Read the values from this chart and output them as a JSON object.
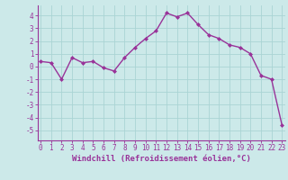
{
  "x": [
    0,
    1,
    2,
    3,
    4,
    5,
    6,
    7,
    8,
    9,
    10,
    11,
    12,
    13,
    14,
    15,
    16,
    17,
    18,
    19,
    20,
    21,
    22,
    23
  ],
  "y": [
    0.4,
    0.3,
    -1.0,
    0.7,
    0.3,
    0.4,
    -0.1,
    -0.35,
    0.7,
    1.5,
    2.2,
    2.8,
    4.2,
    3.9,
    4.2,
    3.3,
    2.5,
    2.2,
    1.7,
    1.5,
    1.0,
    -0.7,
    -1.0,
    -4.6
  ],
  "line_color": "#993399",
  "marker": "D",
  "marker_size": 2.0,
  "bg_color": "#cce9e9",
  "grid_color": "#aad4d4",
  "xlabel": "Windchill (Refroidissement éolien,°C)",
  "xlabel_fontsize": 6.5,
  "xtick_labels": [
    "0",
    "1",
    "2",
    "3",
    "4",
    "5",
    "6",
    "7",
    "8",
    "9",
    "10",
    "11",
    "12",
    "13",
    "14",
    "15",
    "16",
    "17",
    "18",
    "19",
    "20",
    "21",
    "22",
    "23"
  ],
  "ytick_values": [
    -5,
    -4,
    -3,
    -2,
    -1,
    0,
    1,
    2,
    3,
    4
  ],
  "ylim": [
    -5.8,
    4.8
  ],
  "xlim": [
    -0.3,
    23.3
  ],
  "tick_fontsize": 5.5,
  "line_width": 1.0
}
